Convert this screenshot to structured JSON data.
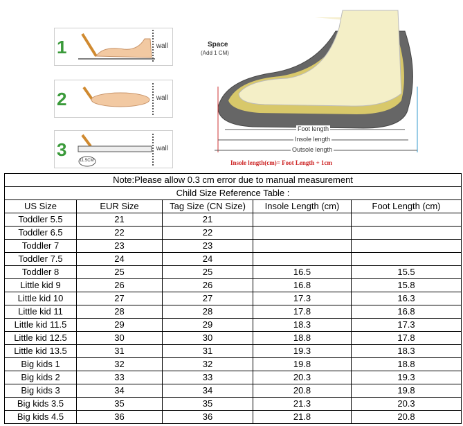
{
  "banner": {
    "steps": [
      {
        "number": "1",
        "wall_label": "wall"
      },
      {
        "number": "2",
        "wall_label": "wall"
      },
      {
        "number": "3",
        "wall_label": "wall",
        "ruler_label": "11.5CM"
      }
    ],
    "space_label": "Space",
    "space_sub": "(Add 1 CM)",
    "foot_length_label": "Foot length",
    "insole_length_label": "Insole length",
    "outsole_length_label": "Outsole length",
    "formula": "Insole length(cm)= Foot Length + 1cm"
  },
  "table": {
    "note": "Note:Please allow 0.3 cm error due to manual measurement",
    "title": "Child Size Reference Table :",
    "headers": [
      "US Size",
      "EUR Size",
      "Tag Size (CN Size)",
      "Insole Length (cm)",
      "Foot Length (cm)"
    ],
    "rows": [
      [
        "Toddler 5.5",
        "21",
        "21",
        "",
        ""
      ],
      [
        "Toddler 6.5",
        "22",
        "22",
        "",
        ""
      ],
      [
        "Toddler 7",
        "23",
        "23",
        "",
        ""
      ],
      [
        "Toddler 7.5",
        "24",
        "24",
        "",
        ""
      ],
      [
        "Toddler 8",
        "25",
        "25",
        "16.5",
        "15.5"
      ],
      [
        "Little kid 9",
        "26",
        "26",
        "16.8",
        "15.8"
      ],
      [
        "Little kid 10",
        "27",
        "27",
        "17.3",
        "16.3"
      ],
      [
        "Little kid 11",
        "28",
        "28",
        "17.8",
        "16.8"
      ],
      [
        "Little kid 11.5",
        "29",
        "29",
        "18.3",
        "17.3"
      ],
      [
        "Little kid 12.5",
        "30",
        "30",
        "18.8",
        "17.8"
      ],
      [
        "Little kid 13.5",
        "31",
        "31",
        "19.3",
        "18.3"
      ],
      [
        "Big kids 1",
        "32",
        "32",
        "19.8",
        "18.8"
      ],
      [
        "Big kids 2",
        "33",
        "33",
        "20.3",
        "19.3"
      ],
      [
        "Big kids 3",
        "34",
        "34",
        "20.8",
        "19.8"
      ],
      [
        "Big kids 3.5",
        "35",
        "35",
        "21.3",
        "20.3"
      ],
      [
        "Big kids 4.5",
        "36",
        "36",
        "21.8",
        "20.8"
      ]
    ]
  }
}
